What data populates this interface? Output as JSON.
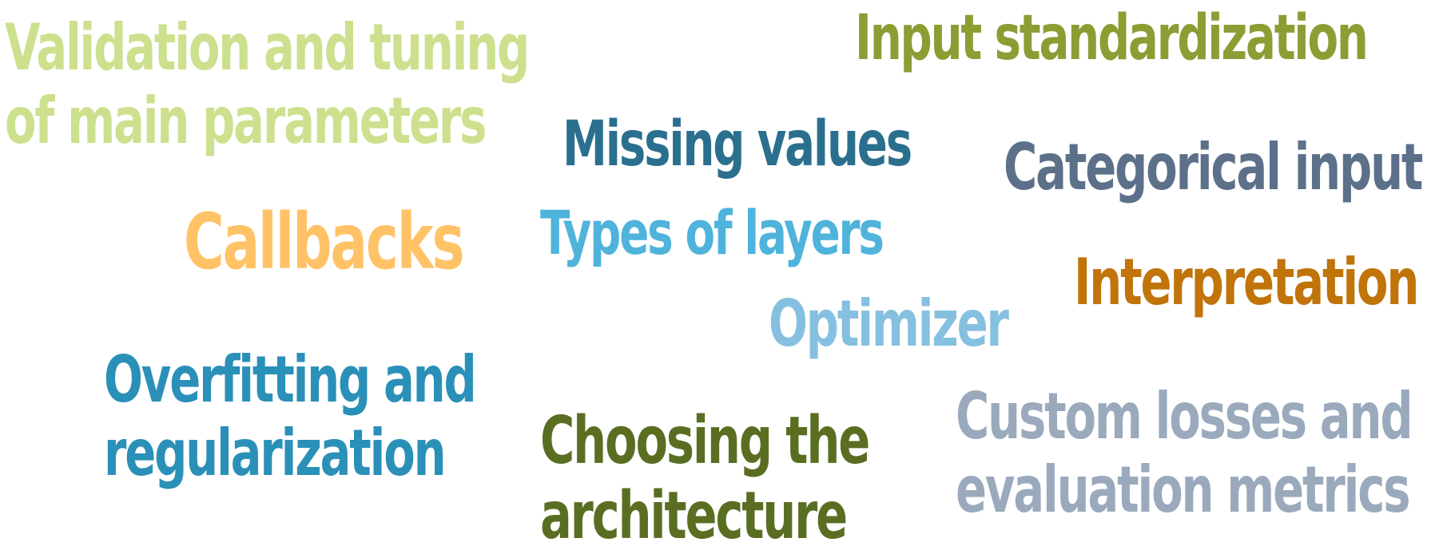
{
  "words": {
    "validation": {
      "lines": [
        "Validation and tuning",
        "of main parameters"
      ],
      "color": "#cde08e"
    },
    "input_std": {
      "lines": [
        "Input standardization"
      ],
      "color": "#8a9e34"
    },
    "missing": {
      "lines": [
        "Missing values"
      ],
      "color": "#2b6f8e"
    },
    "categorical": {
      "lines": [
        "Categorical input"
      ],
      "color": "#5c708a"
    },
    "callbacks": {
      "lines": [
        "Callbacks"
      ],
      "color": "#ffc266"
    },
    "types": {
      "lines": [
        "Types of layers"
      ],
      "color": "#4fb3dc"
    },
    "interp": {
      "lines": [
        "Interpretation"
      ],
      "color": "#c0740a"
    },
    "optimizer": {
      "lines": [
        "Optimizer"
      ],
      "color": "#86c0e0"
    },
    "overfitting": {
      "lines": [
        "Overfitting and",
        "regularization"
      ],
      "color": "#2a90b8"
    },
    "choosing": {
      "lines": [
        "Choosing the",
        "architecture"
      ],
      "color": "#5a6e22"
    },
    "custom": {
      "lines": [
        "Custom losses and",
        "evaluation metrics"
      ],
      "color": "#9aaabc"
    }
  }
}
